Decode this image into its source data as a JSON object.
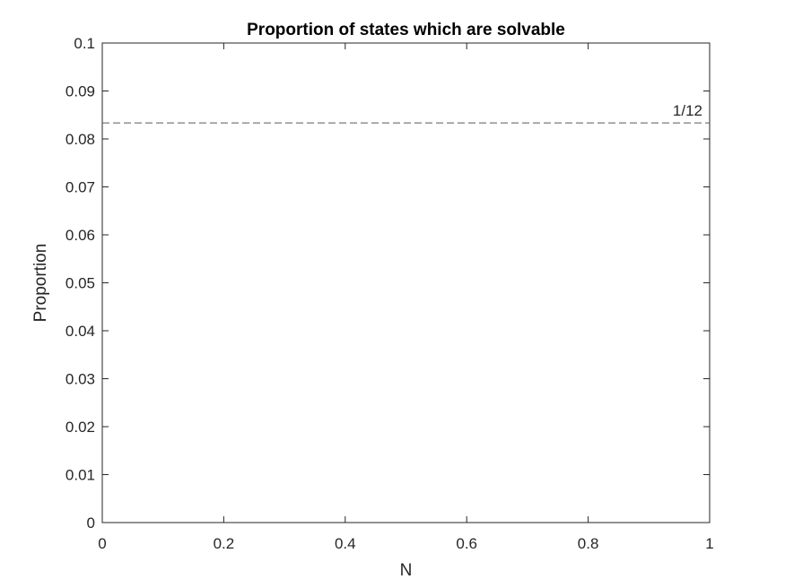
{
  "chart_data": {
    "type": "line",
    "title": "Proportion of states which are solvable",
    "xlabel": "N",
    "ylabel": "Proportion",
    "xlim": [
      0,
      1
    ],
    "ylim": [
      0,
      0.1
    ],
    "x_ticks": [
      "0",
      "0.2",
      "0.4",
      "0.6",
      "0.8",
      "1"
    ],
    "y_ticks": [
      "0",
      "0.01",
      "0.02",
      "0.03",
      "0.04",
      "0.05",
      "0.06",
      "0.07",
      "0.08",
      "0.09",
      "0.1"
    ],
    "grid": false,
    "series": [],
    "reference_line": {
      "y": 0.08333,
      "label": "1/12",
      "style": "dashed",
      "color": "#595959"
    },
    "colors": {
      "axis": "#262626",
      "background": "#ffffff"
    }
  }
}
